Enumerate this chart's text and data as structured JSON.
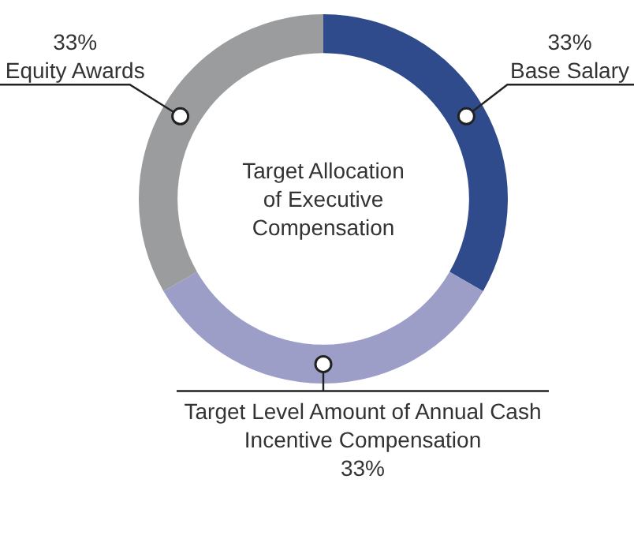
{
  "chart_data": {
    "type": "donut",
    "title": "Target Allocation of Executive Compensation",
    "categories": [
      "Base Salary",
      "Target Level Amount of Annual Cash Incentive Compensation",
      "Equity Awards"
    ],
    "values": [
      33,
      33,
      33
    ],
    "colors": [
      "#2f4b8c",
      "#9c9ec8",
      "#9b9c9e"
    ],
    "value_labels": [
      "33%",
      "33%",
      "33%"
    ],
    "legend": false
  }
}
